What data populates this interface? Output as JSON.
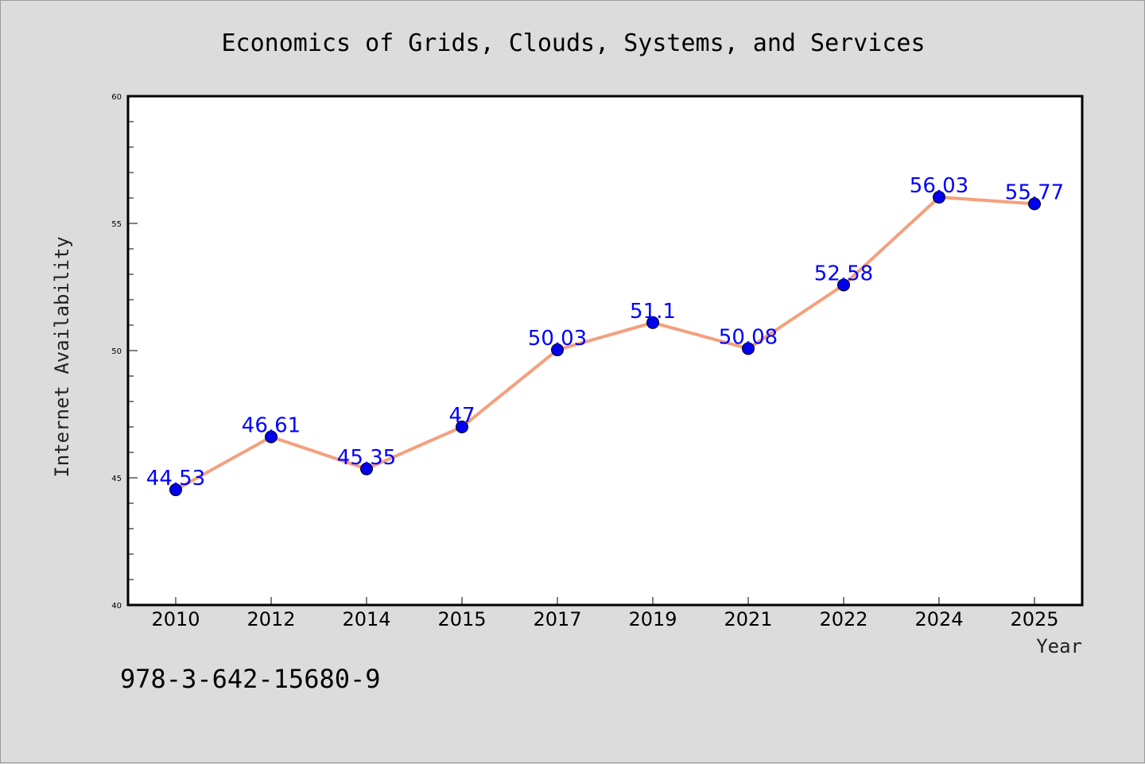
{
  "chart_data": {
    "type": "line",
    "title": "Economics of Grids, Clouds, Systems, and Services",
    "xlabel": "Year",
    "ylabel": "Internet Availability",
    "categories": [
      "2010",
      "2012",
      "2014",
      "2015",
      "2017",
      "2019",
      "2021",
      "2022",
      "2024",
      "2025"
    ],
    "series": [
      {
        "values": [
          44.53,
          46.61,
          45.35,
          47,
          50.03,
          51.1,
          50.08,
          52.58,
          56.03,
          55.77
        ],
        "data_labels": [
          "44.53",
          "46.61",
          "45.35",
          "47",
          "50.03",
          "51.1",
          "50.08",
          "52.58",
          "56.03",
          "55.77"
        ],
        "line_color": "#f4a07e",
        "marker_color": "#0000ee"
      }
    ],
    "ylim": [
      40,
      60
    ],
    "yticks": [
      "40",
      "45",
      "50",
      "55",
      "60"
    ],
    "grid": false,
    "legend": "none"
  },
  "footnote": "978-3-642-15680-9",
  "colors": {
    "background": "#dcdcdc",
    "plot_background": "#ffffff",
    "data_label": "#0000ff"
  }
}
